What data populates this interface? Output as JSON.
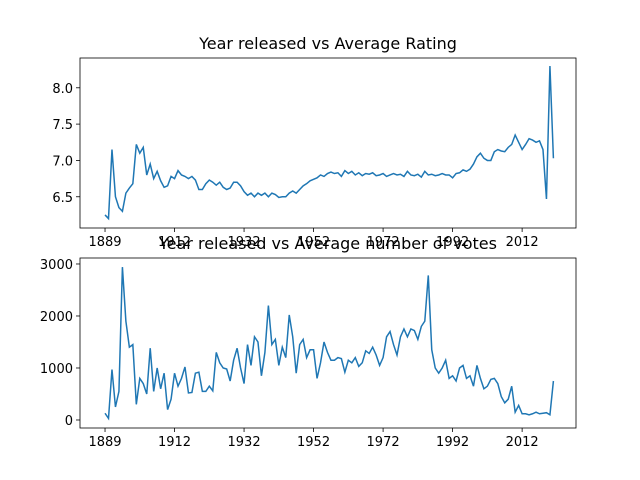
{
  "chart_data": [
    {
      "type": "line",
      "title": "Year released vs Average Rating",
      "color": "#1f77b4",
      "x": [
        0,
        1,
        2,
        3,
        4,
        5,
        6,
        7,
        8,
        9,
        10,
        11,
        12,
        13,
        14,
        15,
        16,
        17,
        18,
        19,
        20,
        21,
        22,
        23,
        24,
        25,
        26,
        27,
        28,
        29,
        30,
        31,
        32,
        33,
        34,
        35,
        36,
        37,
        38,
        39,
        40,
        41,
        42,
        43,
        44,
        45,
        46,
        47,
        48,
        49,
        50,
        51,
        52,
        53,
        54,
        55,
        56,
        57,
        58,
        59,
        60,
        61,
        62,
        63,
        64,
        65,
        66,
        67,
        68,
        69,
        70,
        71,
        72,
        73,
        74,
        75,
        76,
        77,
        78,
        79,
        80,
        81,
        82,
        83,
        84,
        85,
        86,
        87,
        88,
        89,
        90,
        91,
        92,
        93,
        94,
        95,
        96,
        97,
        98,
        99,
        100,
        101,
        102,
        103,
        104,
        105,
        106,
        107,
        108,
        109,
        110,
        111,
        112,
        113,
        114,
        115,
        116,
        117,
        118,
        119,
        120,
        121,
        122,
        123,
        124,
        125,
        126,
        127,
        128,
        129
      ],
      "values": [
        6.25,
        6.2,
        7.15,
        6.5,
        6.35,
        6.3,
        6.55,
        6.62,
        6.68,
        7.22,
        7.1,
        7.18,
        6.8,
        6.95,
        6.75,
        6.85,
        6.72,
        6.63,
        6.65,
        6.78,
        6.75,
        6.86,
        6.8,
        6.78,
        6.75,
        6.78,
        6.73,
        6.6,
        6.6,
        6.68,
        6.73,
        6.7,
        6.66,
        6.7,
        6.63,
        6.6,
        6.62,
        6.7,
        6.7,
        6.65,
        6.57,
        6.52,
        6.55,
        6.5,
        6.55,
        6.52,
        6.55,
        6.5,
        6.55,
        6.53,
        6.49,
        6.5,
        6.5,
        6.55,
        6.58,
        6.55,
        6.6,
        6.65,
        6.68,
        6.72,
        6.74,
        6.76,
        6.8,
        6.78,
        6.82,
        6.84,
        6.82,
        6.83,
        6.78,
        6.86,
        6.82,
        6.85,
        6.8,
        6.83,
        6.79,
        6.82,
        6.81,
        6.83,
        6.79,
        6.8,
        6.82,
        6.78,
        6.8,
        6.82,
        6.8,
        6.81,
        6.78,
        6.85,
        6.8,
        6.79,
        6.81,
        6.77,
        6.85,
        6.8,
        6.81,
        6.79,
        6.8,
        6.82,
        6.8,
        6.8,
        6.76,
        6.82,
        6.83,
        6.87,
        6.85,
        6.88,
        6.95,
        7.05,
        7.1,
        7.03,
        7.0,
        7.0,
        7.12,
        7.15,
        7.13,
        7.12,
        7.18,
        7.22,
        7.35,
        7.25,
        7.15,
        7.22,
        7.3,
        7.28,
        7.25,
        7.27,
        7.15,
        6.47,
        8.3,
        7.03
      ],
      "xlim": [
        -7.2,
        135.5
      ],
      "xticks": [
        {
          "value": 0,
          "label": "1889"
        },
        {
          "value": 20,
          "label": "1912"
        },
        {
          "value": 40,
          "label": "1932"
        },
        {
          "value": 60,
          "label": "1952"
        },
        {
          "value": 80,
          "label": "1972"
        },
        {
          "value": 100,
          "label": "1992"
        },
        {
          "value": 120,
          "label": "2012"
        }
      ],
      "ylim": [
        6.07,
        8.41
      ],
      "yticks": [
        {
          "value": 6.5,
          "label": "6.5"
        },
        {
          "value": 7.0,
          "label": "7.0"
        },
        {
          "value": 7.5,
          "label": "7.5"
        },
        {
          "value": 8.0,
          "label": "8.0"
        }
      ]
    },
    {
      "type": "line",
      "title": "Year released vs Average number of votes",
      "color": "#1f77b4",
      "x": [
        0,
        1,
        2,
        3,
        4,
        5,
        6,
        7,
        8,
        9,
        10,
        11,
        12,
        13,
        14,
        15,
        16,
        17,
        18,
        19,
        20,
        21,
        22,
        23,
        24,
        25,
        26,
        27,
        28,
        29,
        30,
        31,
        32,
        33,
        34,
        35,
        36,
        37,
        38,
        39,
        40,
        41,
        42,
        43,
        44,
        45,
        46,
        47,
        48,
        49,
        50,
        51,
        52,
        53,
        54,
        55,
        56,
        57,
        58,
        59,
        60,
        61,
        62,
        63,
        64,
        65,
        66,
        67,
        68,
        69,
        70,
        71,
        72,
        73,
        74,
        75,
        76,
        77,
        78,
        79,
        80,
        81,
        82,
        83,
        84,
        85,
        86,
        87,
        88,
        89,
        90,
        91,
        92,
        93,
        94,
        95,
        96,
        97,
        98,
        99,
        100,
        101,
        102,
        103,
        104,
        105,
        106,
        107,
        108,
        109,
        110,
        111,
        112,
        113,
        114,
        115,
        116,
        117,
        118,
        119,
        120,
        121,
        122,
        123,
        124,
        125,
        126,
        127,
        128,
        129
      ],
      "values": [
        130,
        30,
        970,
        250,
        550,
        2940,
        1900,
        1400,
        1450,
        300,
        800,
        700,
        500,
        1380,
        550,
        1000,
        600,
        900,
        200,
        400,
        900,
        650,
        800,
        1020,
        520,
        530,
        900,
        920,
        550,
        550,
        650,
        560,
        1300,
        1100,
        1000,
        980,
        750,
        1150,
        1380,
        1000,
        700,
        1450,
        1050,
        1600,
        1500,
        850,
        1300,
        2200,
        1450,
        1550,
        1050,
        1400,
        1200,
        2020,
        1600,
        900,
        1450,
        1550,
        1200,
        1350,
        1350,
        800,
        1100,
        1500,
        1300,
        1150,
        1150,
        1200,
        1180,
        920,
        1150,
        1100,
        1200,
        1030,
        1100,
        1330,
        1280,
        1400,
        1250,
        1050,
        1200,
        1600,
        1700,
        1450,
        1250,
        1600,
        1750,
        1600,
        1750,
        1720,
        1550,
        1800,
        1900,
        2780,
        1350,
        1000,
        900,
        1000,
        1150,
        800,
        850,
        750,
        1000,
        1050,
        800,
        850,
        650,
        1050,
        800,
        600,
        650,
        780,
        800,
        700,
        450,
        330,
        400,
        650,
        150,
        280,
        120,
        120,
        100,
        120,
        150,
        120,
        130,
        140,
        100,
        750
      ],
      "xlim": [
        -7.2,
        135.5
      ],
      "xticks": [
        {
          "value": 0,
          "label": "1889"
        },
        {
          "value": 20,
          "label": "1912"
        },
        {
          "value": 40,
          "label": "1932"
        },
        {
          "value": 60,
          "label": "1952"
        },
        {
          "value": 80,
          "label": "1972"
        },
        {
          "value": 100,
          "label": "1992"
        },
        {
          "value": 120,
          "label": "2012"
        }
      ],
      "ylim": [
        -154,
        3115
      ],
      "yticks": [
        0,
        1000,
        2000,
        3000
      ]
    }
  ]
}
